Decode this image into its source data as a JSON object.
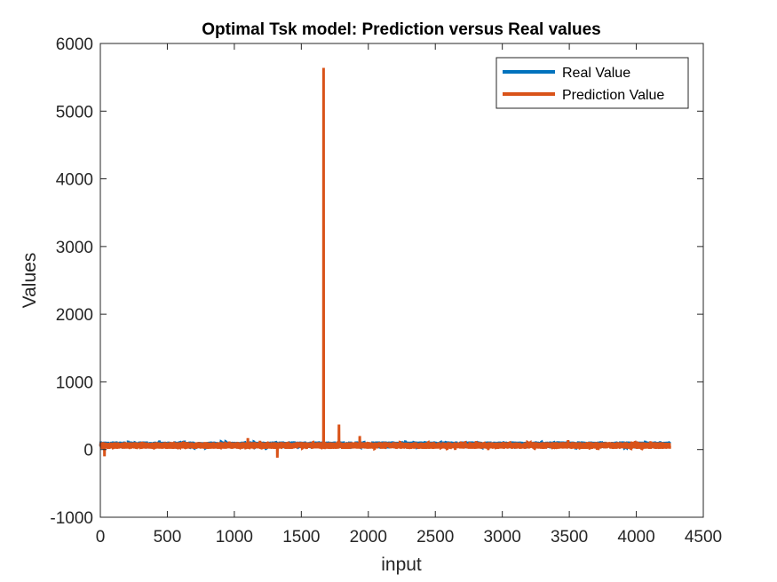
{
  "chart_data": {
    "type": "line",
    "title": "Optimal Tsk model: Prediction versus Real values",
    "xlabel": "input",
    "ylabel": "Values",
    "xlim": [
      0,
      4500
    ],
    "ylim": [
      -1000,
      6000
    ],
    "xticks": [
      0,
      500,
      1000,
      1500,
      2000,
      2500,
      3000,
      3500,
      4000,
      4500
    ],
    "yticks": [
      -1000,
      0,
      1000,
      2000,
      3000,
      4000,
      5000,
      6000
    ],
    "grid": false,
    "legend_position": "top-right",
    "n_points": 4250,
    "series": [
      {
        "name": "Real Value",
        "color": "#0072BD",
        "baseline": 60,
        "noise_range": [
          20,
          120
        ],
        "notable_points": []
      },
      {
        "name": "Prediction Value",
        "color": "#D95319",
        "baseline": 50,
        "noise_range": [
          10,
          110
        ],
        "notable_points": [
          {
            "x": 30,
            "y": -100
          },
          {
            "x": 1100,
            "y": 170
          },
          {
            "x": 1190,
            "y": 130
          },
          {
            "x": 1320,
            "y": -120
          },
          {
            "x": 1665,
            "y": 5640
          },
          {
            "x": 1780,
            "y": 370
          },
          {
            "x": 1935,
            "y": 200
          },
          {
            "x": 3490,
            "y": 140
          }
        ]
      }
    ]
  }
}
